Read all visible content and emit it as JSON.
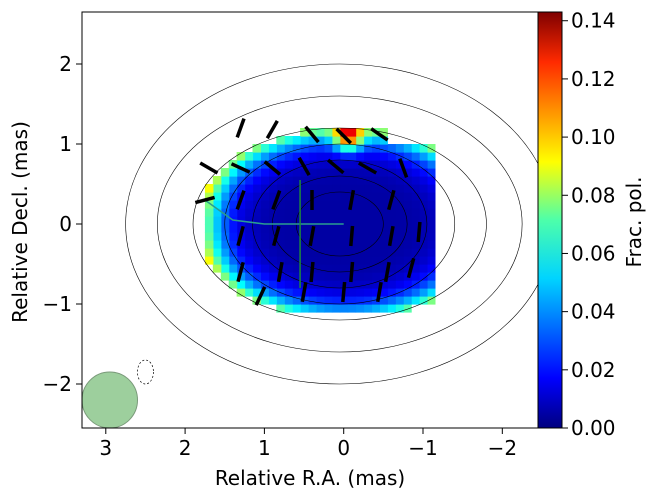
{
  "chart_data": {
    "type": "heatmap",
    "title": "",
    "xlabel": "Relative R.A. (mas)",
    "ylabel": "Relative Decl. (mas)",
    "xlim": [
      3.3,
      -2.45
    ],
    "ylim": [
      -2.55,
      2.65
    ],
    "x_ticks": [
      3,
      2,
      1,
      0,
      -1,
      -2
    ],
    "y_ticks": [
      2,
      1,
      0,
      -1,
      -2
    ],
    "x_tick_labels": [
      "3",
      "2",
      "1",
      "0",
      "−1",
      "−2"
    ],
    "y_tick_labels": [
      "2",
      "1",
      "0",
      "−1",
      "−2"
    ],
    "colorbar": {
      "label": "Frac. pol.",
      "colormap": "jet",
      "range": [
        0.0,
        0.143
      ],
      "ticks": [
        0.0,
        0.02,
        0.04,
        0.06,
        0.08,
        0.1,
        0.12,
        0.14
      ],
      "tick_labels": [
        "0.00",
        "0.02",
        "0.04",
        "0.06",
        "0.08",
        "0.10",
        "0.12",
        "0.14"
      ]
    },
    "fractional_polarization_map": {
      "pixel_size_mas": 0.1,
      "center": [
        0.0,
        0.0
      ],
      "semi_axis_ra": 1.85,
      "semi_axis_dec": 1.2,
      "center_value": 0.005,
      "edge_value": 0.075,
      "high_spot": {
        "x": -0.05,
        "y": 1.1,
        "value": 0.1
      }
    },
    "contours": {
      "center": [
        0.05,
        0.0
      ],
      "levels": [
        {
          "rx": 0.55,
          "ry": 0.4
        },
        {
          "rx": 0.85,
          "ry": 0.6
        },
        {
          "rx": 1.1,
          "ry": 0.8
        },
        {
          "rx": 1.45,
          "ry": 1.0
        },
        {
          "rx": 1.85,
          "ry": 1.2
        },
        {
          "rx": 2.3,
          "ry": 1.6
        },
        {
          "rx": 2.7,
          "ry": 2.0
        }
      ],
      "negative_contour": {
        "x": 2.5,
        "y": -1.85
      }
    },
    "evpa_ticks": [
      {
        "x": 1.3,
        "y": 1.2,
        "angle": 70
      },
      {
        "x": 0.9,
        "y": 1.18,
        "angle": 60
      },
      {
        "x": 0.4,
        "y": 1.12,
        "angle": -50
      },
      {
        "x": 0.0,
        "y": 1.1,
        "angle": -45
      },
      {
        "x": -0.45,
        "y": 1.12,
        "angle": -35
      },
      {
        "x": 1.7,
        "y": 0.7,
        "angle": -30
      },
      {
        "x": 1.3,
        "y": 0.7,
        "angle": -25
      },
      {
        "x": 0.9,
        "y": 0.7,
        "angle": -40
      },
      {
        "x": 0.5,
        "y": 0.72,
        "angle": -60
      },
      {
        "x": 0.1,
        "y": 0.72,
        "angle": -40
      },
      {
        "x": -0.3,
        "y": 0.7,
        "angle": -30
      },
      {
        "x": -0.75,
        "y": 0.7,
        "angle": -70
      },
      {
        "x": 1.75,
        "y": 0.3,
        "angle": 15
      },
      {
        "x": 1.3,
        "y": 0.3,
        "angle": 70
      },
      {
        "x": 0.85,
        "y": 0.3,
        "angle": 70
      },
      {
        "x": 0.4,
        "y": 0.3,
        "angle": 90
      },
      {
        "x": -0.1,
        "y": 0.3,
        "angle": 80
      },
      {
        "x": -0.6,
        "y": 0.3,
        "angle": 75
      },
      {
        "x": 1.3,
        "y": -0.15,
        "angle": 75
      },
      {
        "x": 0.85,
        "y": -0.15,
        "angle": 75
      },
      {
        "x": 0.4,
        "y": -0.15,
        "angle": 80
      },
      {
        "x": -0.1,
        "y": -0.15,
        "angle": 85
      },
      {
        "x": -0.6,
        "y": -0.15,
        "angle": 80
      },
      {
        "x": -0.95,
        "y": -0.1,
        "angle": 85
      },
      {
        "x": 1.3,
        "y": -0.6,
        "angle": 75
      },
      {
        "x": 0.8,
        "y": -0.6,
        "angle": 80
      },
      {
        "x": 0.4,
        "y": -0.6,
        "angle": 85
      },
      {
        "x": -0.1,
        "y": -0.6,
        "angle": 85
      },
      {
        "x": -0.55,
        "y": -0.6,
        "angle": 80
      },
      {
        "x": -0.85,
        "y": -0.55,
        "angle": 75
      },
      {
        "x": 1.05,
        "y": -0.9,
        "angle": 65
      },
      {
        "x": 0.5,
        "y": -0.85,
        "angle": 80
      },
      {
        "x": 0.0,
        "y": -0.85,
        "angle": 85
      },
      {
        "x": -0.45,
        "y": -0.85,
        "angle": 80
      }
    ],
    "jet_axis": {
      "color": "#2a9d8f",
      "points": [
        [
          1.75,
          0.3
        ],
        [
          1.4,
          0.05
        ],
        [
          1.0,
          0.0
        ],
        [
          0.0,
          0.0
        ]
      ],
      "cross": [
        [
          0.55,
          0.55
        ],
        [
          0.55,
          -0.8
        ]
      ]
    },
    "beam": {
      "x": 2.95,
      "y": -2.2,
      "rx": 0.35,
      "ry": 0.35,
      "color": "#9dcf9d"
    }
  }
}
